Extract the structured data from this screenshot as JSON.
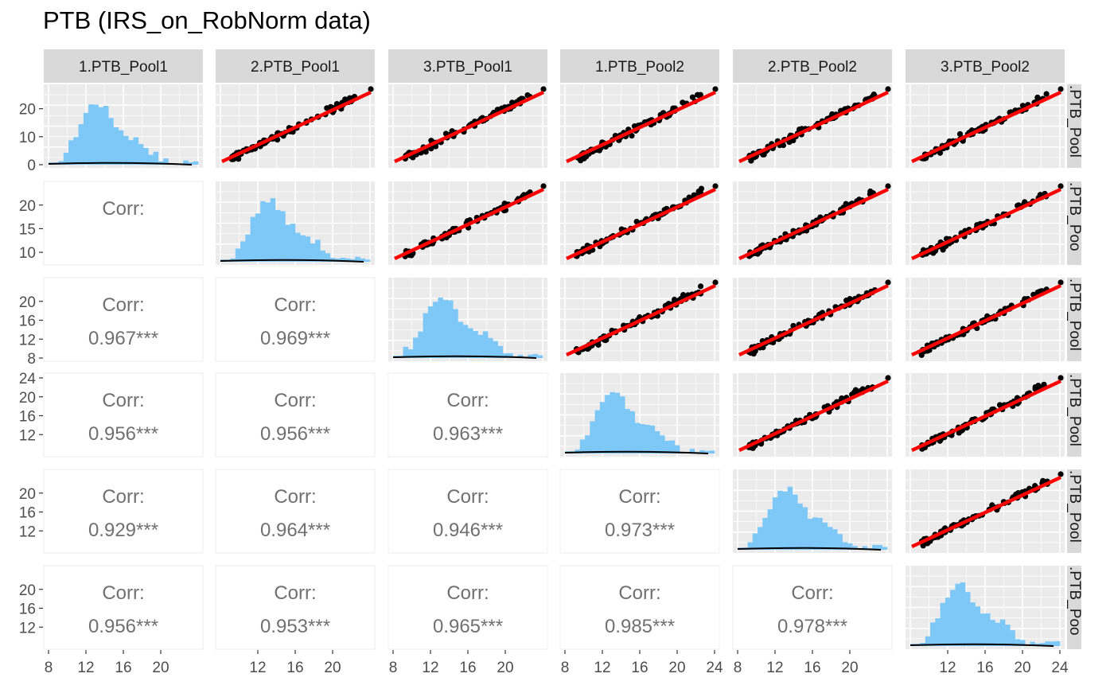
{
  "title": "PTB (IRS_on_RobNorm data)",
  "chart_data": {
    "type": "scatter-matrix",
    "title": "PTB (IRS_on_RobNorm data)",
    "variables": [
      "1.PTB_Pool1",
      "2.PTB_Pool1",
      "3.PTB_Pool1",
      "1.PTB_Pool2",
      "2.PTB_Pool2",
      "3.PTB_Pool2"
    ],
    "row_strip_labels": [
      ".PTB_Pool",
      ".PTB_Poo",
      ".PTB_Pool",
      ".PTB_Pool",
      ".PTB_Pool",
      ".PTB_Poo"
    ],
    "corr_label": "Corr:",
    "correlations": [
      [
        1,
        2,
        "0.953***"
      ],
      [
        2,
        0,
        "0.967***"
      ],
      [
        2,
        1,
        "0.969***"
      ],
      [
        3,
        0,
        "0.956***"
      ],
      [
        3,
        1,
        "0.956***"
      ],
      [
        3,
        2,
        "0.963***"
      ],
      [
        4,
        0,
        "0.929***"
      ],
      [
        4,
        1,
        "0.964***"
      ],
      [
        4,
        2,
        "0.946***"
      ],
      [
        4,
        3,
        "0.973***"
      ],
      [
        5,
        0,
        "0.956***"
      ],
      [
        5,
        1,
        "0.953***"
      ],
      [
        5,
        2,
        "0.965***"
      ],
      [
        5,
        3,
        "0.985***"
      ],
      [
        5,
        4,
        "0.978***"
      ]
    ],
    "x_axis_ticks": [
      {
        "panel": 0,
        "range": [
          8,
          24
        ],
        "ticks": [
          8,
          12,
          16,
          20
        ]
      },
      {
        "panel": 1,
        "range": [
          8,
          24
        ],
        "ticks": [
          12,
          16,
          20
        ]
      },
      {
        "panel": 2,
        "range": [
          8,
          24
        ],
        "ticks": [
          8,
          12,
          16,
          20
        ]
      },
      {
        "panel": 3,
        "range": [
          8,
          24
        ],
        "ticks": [
          8,
          12,
          16,
          20,
          24
        ]
      },
      {
        "panel": 4,
        "range": [
          8,
          24
        ],
        "ticks": [
          8,
          12,
          16,
          20
        ]
      },
      {
        "panel": 5,
        "range": [
          8,
          24
        ],
        "ticks": [
          12,
          16,
          20,
          24
        ]
      }
    ],
    "y_axis_ticks": [
      {
        "row": 0,
        "range": [
          0,
          27
        ],
        "ticks": [
          0,
          10,
          20
        ]
      },
      {
        "row": 1,
        "range": [
          8,
          24
        ],
        "ticks": [
          10,
          15,
          20
        ]
      },
      {
        "row": 2,
        "range": [
          8,
          24
        ],
        "ticks": [
          8,
          12,
          16,
          20
        ]
      },
      {
        "row": 3,
        "range": [
          8,
          24
        ],
        "ticks": [
          12,
          16,
          20,
          24
        ]
      },
      {
        "row": 4,
        "range": [
          8,
          24
        ],
        "ticks": [
          12,
          16,
          20
        ]
      },
      {
        "row": 5,
        "range": [
          8,
          24
        ],
        "ticks": [
          12,
          16,
          20
        ]
      }
    ],
    "diagonal": "histogram",
    "upper": "scatter with linear fit",
    "colors": {
      "histogram": "#7ec8f8",
      "fit_line": "#ff0000",
      "points": "#000000",
      "panel_bg": "#ebebeb",
      "grid": "#ffffff",
      "strip_bg": "#d9d9d9",
      "corr_text": "#707070"
    }
  }
}
